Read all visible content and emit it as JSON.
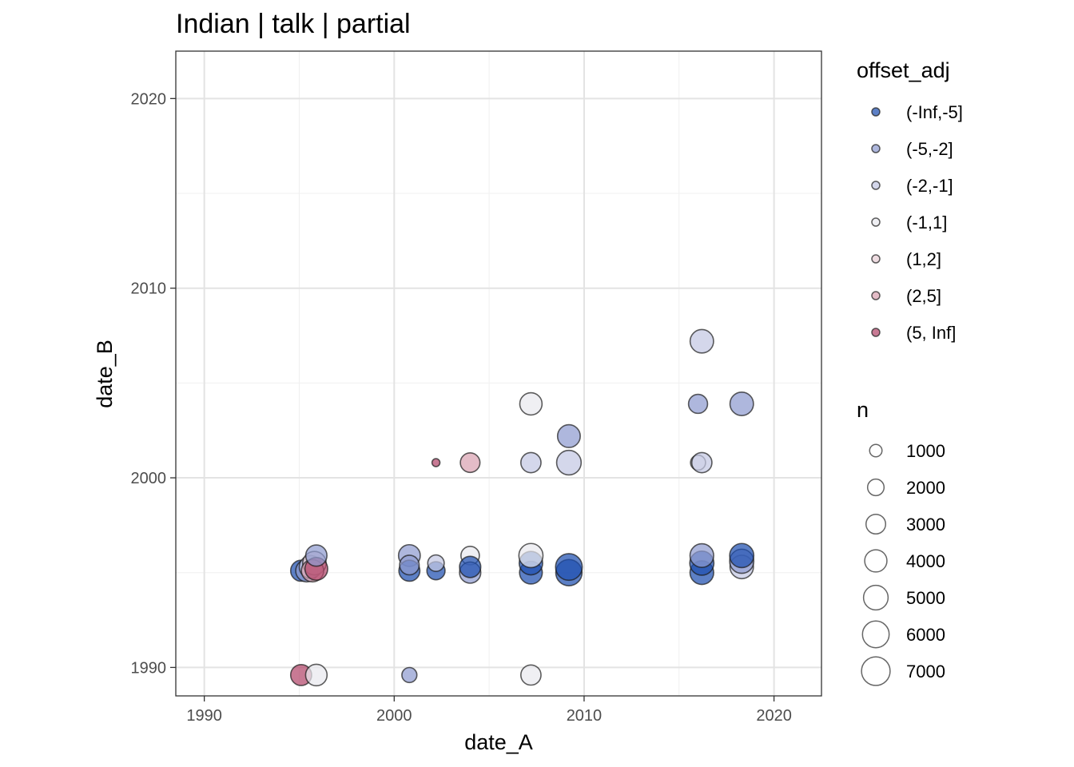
{
  "chart_data": {
    "type": "scatter",
    "title": "Indian | talk | partial",
    "xlabel": "date_A",
    "ylabel": "date_B",
    "xlim": [
      1988.5,
      2022.5
    ],
    "ylim": [
      1988.5,
      2022.5
    ],
    "x_ticks": [
      1990,
      2000,
      2010,
      2020
    ],
    "y_ticks": [
      1990,
      2000,
      2010,
      2020
    ],
    "grid": true,
    "legend_position": "right",
    "color_legend": {
      "title": "offset_adj",
      "entries": [
        {
          "label": "(-Inf,-5]",
          "color": "#1f4fb0"
        },
        {
          "label": "(-5,-2]",
          "color": "#8f9bd0"
        },
        {
          "label": "(-2,-1]",
          "color": "#c3c8e3"
        },
        {
          "label": "(-1,1]",
          "color": "#e9e9ee"
        },
        {
          "label": "(1,2]",
          "color": "#e8cfd6"
        },
        {
          "label": "(2,5]",
          "color": "#d9a2b2"
        },
        {
          "label": "(5, Inf]",
          "color": "#b3476b"
        }
      ]
    },
    "size_legend": {
      "title": "n",
      "entries": [
        1000,
        2000,
        3000,
        4000,
        5000,
        6000,
        7000
      ],
      "labels": [
        "1000",
        "2000",
        "3000",
        "4000",
        "5000",
        "6000",
        "7000"
      ]
    },
    "points": [
      {
        "x": 1995.1,
        "y": 1995.1,
        "n": 3500,
        "group": "(-Inf,-5]"
      },
      {
        "x": 1995.4,
        "y": 1995.1,
        "n": 4000,
        "group": "(-5,-2]"
      },
      {
        "x": 1995.6,
        "y": 1995.3,
        "n": 4200,
        "group": "(-2,-1]"
      },
      {
        "x": 1995.8,
        "y": 1995.5,
        "n": 4500,
        "group": "(1,2]"
      },
      {
        "x": 1995.7,
        "y": 1995.1,
        "n": 4000,
        "group": "(2,5]"
      },
      {
        "x": 1995.9,
        "y": 1995.2,
        "n": 4200,
        "group": "(5, Inf]"
      },
      {
        "x": 1995.9,
        "y": 1995.9,
        "n": 3600,
        "group": "(-5,-2]"
      },
      {
        "x": 1995.1,
        "y": 1989.6,
        "n": 3500,
        "group": "(5, Inf]"
      },
      {
        "x": 1995.9,
        "y": 1989.6,
        "n": 3700,
        "group": "(-1,1]"
      },
      {
        "x": 2000.8,
        "y": 1995.9,
        "n": 3800,
        "group": "(-5,-2]"
      },
      {
        "x": 2000.8,
        "y": 1995.1,
        "n": 3500,
        "group": "(-Inf,-5]"
      },
      {
        "x": 2000.8,
        "y": 1995.4,
        "n": 3000,
        "group": "(-5,-2]"
      },
      {
        "x": 2000.8,
        "y": 1989.6,
        "n": 1600,
        "group": "(-5,-2]"
      },
      {
        "x": 2002.2,
        "y": 2000.8,
        "n": 300,
        "group": "(5, Inf]"
      },
      {
        "x": 2002.2,
        "y": 1995.1,
        "n": 2500,
        "group": "(-Inf,-5]"
      },
      {
        "x": 2002.2,
        "y": 1995.5,
        "n": 2000,
        "group": "(-2,-1]"
      },
      {
        "x": 2004.0,
        "y": 2000.8,
        "n": 3000,
        "group": "(2,5]"
      },
      {
        "x": 2004.0,
        "y": 1995.9,
        "n": 2600,
        "group": "(-1,1]"
      },
      {
        "x": 2004.0,
        "y": 1995.0,
        "n": 3600,
        "group": "(-5,-2]"
      },
      {
        "x": 2004.0,
        "y": 1995.3,
        "n": 3600,
        "group": "(-Inf,-5]"
      },
      {
        "x": 2007.2,
        "y": 2003.9,
        "n": 4000,
        "group": "(-1,1]"
      },
      {
        "x": 2007.2,
        "y": 2000.8,
        "n": 3200,
        "group": "(-2,-1]"
      },
      {
        "x": 2007.2,
        "y": 1995.0,
        "n": 4200,
        "group": "(-Inf,-5]"
      },
      {
        "x": 2007.2,
        "y": 1995.5,
        "n": 4500,
        "group": "(-Inf,-5]"
      },
      {
        "x": 2007.2,
        "y": 1995.9,
        "n": 4800,
        "group": "(-1,1]"
      },
      {
        "x": 2007.2,
        "y": 1989.6,
        "n": 3200,
        "group": "(-1,1]"
      },
      {
        "x": 2009.2,
        "y": 2002.2,
        "n": 4200,
        "group": "(-5,-2]"
      },
      {
        "x": 2009.2,
        "y": 2000.8,
        "n": 5000,
        "group": "(-2,-1]"
      },
      {
        "x": 2009.2,
        "y": 1995.0,
        "n": 5800,
        "group": "(-Inf,-5]"
      },
      {
        "x": 2009.2,
        "y": 1995.3,
        "n": 6000,
        "group": "(-Inf,-5]"
      },
      {
        "x": 2016.2,
        "y": 2007.2,
        "n": 4500,
        "group": "(-2,-1]"
      },
      {
        "x": 2016.0,
        "y": 2003.9,
        "n": 2800,
        "group": "(-5,-2]"
      },
      {
        "x": 2016.0,
        "y": 2000.8,
        "n": 1600,
        "group": "(-1,1]"
      },
      {
        "x": 2016.2,
        "y": 2000.8,
        "n": 3200,
        "group": "(-2,-1]"
      },
      {
        "x": 2016.2,
        "y": 1995.0,
        "n": 4600,
        "group": "(-Inf,-5]"
      },
      {
        "x": 2016.2,
        "y": 1995.5,
        "n": 4800,
        "group": "(-Inf,-5]"
      },
      {
        "x": 2016.2,
        "y": 1995.9,
        "n": 4600,
        "group": "(-5,-2]"
      },
      {
        "x": 2018.3,
        "y": 2003.9,
        "n": 4500,
        "group": "(-5,-2]"
      },
      {
        "x": 2018.3,
        "y": 1995.3,
        "n": 4500,
        "group": "(-2,-1]"
      },
      {
        "x": 2018.3,
        "y": 1995.6,
        "n": 4800,
        "group": "(-5,-2]"
      },
      {
        "x": 2018.3,
        "y": 1995.9,
        "n": 4800,
        "group": "(-Inf,-5]"
      }
    ]
  }
}
